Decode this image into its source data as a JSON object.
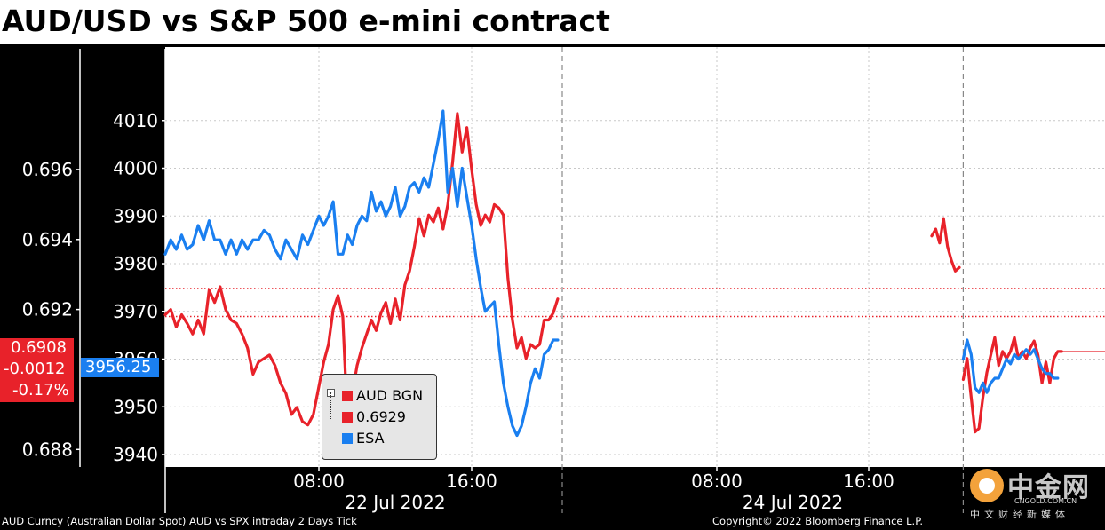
{
  "title": "AUD/USD vs S&P 500 e-mini contract",
  "footer": {
    "left": "AUD Curncy (Australian Dollar Spot) AUD vs SPX intraday 2 Days  Tick",
    "right": "Copyright© 2022 Bloomberg Finance L.P."
  },
  "watermark": {
    "name": "中金网",
    "url": "CNGOLD.COM.CN",
    "sub": "中文财经新媒体"
  },
  "colors": {
    "aud": "#e8222a",
    "esa": "#1a7ff0",
    "background": "#ffffff",
    "axis_bg": "#000000"
  },
  "last_value_tags": {
    "aud_price": "0.6908",
    "aud_change": "-0.0012",
    "aud_pct": "-0.17%",
    "esa_price": "3956.25"
  },
  "chart_data": {
    "type": "line",
    "title": "AUD/USD vs S&P 500 e-mini contract",
    "x_axis": {
      "ticks": [
        {
          "label": "08:00",
          "date": "22 Jul 2022"
        },
        {
          "label": "16:00",
          "date": "22 Jul 2022"
        },
        {
          "label": "08:00",
          "date": "24 Jul 2022"
        },
        {
          "label": "16:00",
          "date": "24 Jul 2022"
        }
      ],
      "date_labels": [
        "22 Jul 2022",
        "24 Jul 2022"
      ],
      "range": [
        "22 Jul 2022 01:00",
        "25 Jul 2022 07:00"
      ]
    },
    "left_axis": {
      "name": "AUD",
      "ticks": [
        "0.696",
        "0.694",
        "0.692",
        "0.688"
      ],
      "range": [
        0.6875,
        0.6995
      ]
    },
    "right_axis": {
      "name": "ESA",
      "ticks": [
        4010,
        4000,
        3990,
        3980,
        3970,
        3960,
        3950,
        3940
      ],
      "range": [
        3937.4,
        4025.4
      ]
    },
    "legend": {
      "entries": [
        "AUD BGN",
        "0.6929",
        "ESA"
      ],
      "placement": "bottom-left"
    },
    "series": [
      {
        "name": "AUD BGN",
        "axis": "left",
        "segments": [
          [
            [
              "22 Jul 01:00",
              0.69185
            ],
            [
              "22 Jul 01:15",
              0.692
            ],
            [
              "22 Jul 01:30",
              0.6915
            ],
            [
              "22 Jul 01:45",
              0.69185
            ],
            [
              "22 Jul 02:00",
              0.6916
            ],
            [
              "22 Jul 02:15",
              0.6913
            ],
            [
              "22 Jul 02:30",
              0.6917
            ],
            [
              "22 Jul 02:45",
              0.6913
            ],
            [
              "22 Jul 03:00",
              0.69255
            ],
            [
              "22 Jul 03:15",
              0.6922
            ],
            [
              "22 Jul 03:30",
              0.69265
            ],
            [
              "22 Jul 03:45",
              0.692
            ],
            [
              "22 Jul 04:00",
              0.6917
            ],
            [
              "22 Jul 04:15",
              0.6916
            ],
            [
              "22 Jul 04:30",
              0.6913
            ],
            [
              "22 Jul 04:45",
              0.6909
            ],
            [
              "22 Jul 05:00",
              0.69015
            ],
            [
              "22 Jul 05:15",
              0.6905
            ],
            [
              "22 Jul 05:30",
              0.6906
            ],
            [
              "22 Jul 05:45",
              0.6907
            ],
            [
              "22 Jul 06:00",
              0.6904
            ],
            [
              "22 Jul 06:15",
              0.6899
            ],
            [
              "22 Jul 06:30",
              0.6896
            ],
            [
              "22 Jul 06:45",
              0.689
            ],
            [
              "22 Jul 07:00",
              0.6892
            ],
            [
              "22 Jul 07:15",
              0.6888
            ],
            [
              "22 Jul 07:30",
              0.6887
            ],
            [
              "22 Jul 07:45",
              0.689
            ],
            [
              "22 Jul 08:00",
              0.6898
            ],
            [
              "22 Jul 08:15",
              0.6905
            ],
            [
              "22 Jul 08:30",
              0.691
            ],
            [
              "22 Jul 08:45",
              0.692
            ],
            [
              "22 Jul 09:00",
              0.6924
            ],
            [
              "22 Jul 09:15",
              0.6918
            ],
            [
              "22 Jul 09:30",
              0.6887
            ],
            [
              "22 Jul 09:45",
              0.6896
            ],
            [
              "22 Jul 10:00",
              0.6904
            ],
            [
              "22 Jul 10:15",
              0.6909
            ],
            [
              "22 Jul 10:30",
              0.6913
            ],
            [
              "22 Jul 10:45",
              0.6917
            ],
            [
              "22 Jul 11:00",
              0.6914
            ],
            [
              "22 Jul 11:15",
              0.6919
            ],
            [
              "22 Jul 11:30",
              0.6922
            ],
            [
              "22 Jul 11:45",
              0.6916
            ],
            [
              "22 Jul 12:00",
              0.6923
            ],
            [
              "22 Jul 12:15",
              0.6917
            ],
            [
              "22 Jul 12:30",
              0.6927
            ],
            [
              "22 Jul 12:45",
              0.6931
            ],
            [
              "22 Jul 13:00",
              0.6938
            ],
            [
              "22 Jul 13:15",
              0.6946
            ],
            [
              "22 Jul 13:30",
              0.6941
            ],
            [
              "22 Jul 13:45",
              0.6947
            ],
            [
              "22 Jul 14:00",
              0.6945
            ],
            [
              "22 Jul 14:15",
              0.6949
            ],
            [
              "22 Jul 14:30",
              0.6943
            ],
            [
              "22 Jul 14:45",
              0.695
            ],
            [
              "22 Jul 15:00",
              0.6962
            ],
            [
              "22 Jul 15:15",
              0.6976
            ],
            [
              "22 Jul 15:30",
              0.6965
            ],
            [
              "22 Jul 15:45",
              0.6972
            ],
            [
              "22 Jul 16:00",
              0.696
            ],
            [
              "22 Jul 16:15",
              0.695
            ],
            [
              "22 Jul 16:30",
              0.6944
            ],
            [
              "22 Jul 16:45",
              0.6947
            ],
            [
              "22 Jul 17:00",
              0.6945
            ],
            [
              "22 Jul 17:15",
              0.695
            ],
            [
              "22 Jul 17:30",
              0.6949
            ],
            [
              "22 Jul 17:45",
              0.6947
            ],
            [
              "22 Jul 18:00",
              0.6929
            ],
            [
              "22 Jul 18:15",
              0.6917
            ],
            [
              "22 Jul 18:30",
              0.6909
            ],
            [
              "22 Jul 18:45",
              0.6912
            ],
            [
              "22 Jul 19:00",
              0.6906
            ],
            [
              "22 Jul 19:15",
              0.691
            ],
            [
              "22 Jul 19:30",
              0.6909
            ],
            [
              "22 Jul 19:45",
              0.691
            ],
            [
              "22 Jul 20:00",
              0.6917
            ],
            [
              "22 Jul 20:15",
              0.6917
            ],
            [
              "22 Jul 20:30",
              0.6919
            ],
            [
              "22 Jul 20:45",
              0.6923
            ]
          ],
          [
            [
              "24 Jul 20:00",
              0.6941
            ],
            [
              "24 Jul 20:15",
              0.6943
            ],
            [
              "24 Jul 20:30",
              0.6939
            ],
            [
              "24 Jul 20:45",
              0.6946
            ],
            [
              "24 Jul 21:00",
              0.6938
            ],
            [
              "24 Jul 21:15",
              0.6934
            ],
            [
              "24 Jul 21:30",
              0.6931
            ],
            [
              "24 Jul 21:45",
              0.6932
            ]
          ],
          [
            [
              "24 Jul 22:00",
              0.69
            ],
            [
              "24 Jul 22:15",
              0.6906
            ],
            [
              "24 Jul 22:30",
              0.6895
            ],
            [
              "24 Jul 22:45",
              0.6885
            ],
            [
              "24 Jul 23:00",
              0.6886
            ],
            [
              "24 Jul 23:15",
              0.6895
            ],
            [
              "24 Jul 23:30",
              0.6902
            ],
            [
              "24 Jul 23:45",
              0.6907
            ],
            [
              "25 Jul 00:00",
              0.6912
            ],
            [
              "25 Jul 00:15",
              0.6904
            ],
            [
              "25 Jul 00:30",
              0.6908
            ],
            [
              "25 Jul 00:45",
              0.6906
            ],
            [
              "25 Jul 01:00",
              0.6908
            ],
            [
              "25 Jul 01:15",
              0.6912
            ],
            [
              "25 Jul 01:30",
              0.6906
            ],
            [
              "25 Jul 01:45",
              0.6908
            ],
            [
              "25 Jul 02:00",
              0.6906
            ],
            [
              "25 Jul 02:15",
              0.6909
            ],
            [
              "25 Jul 02:30",
              0.6911
            ],
            [
              "25 Jul 02:45",
              0.6907
            ],
            [
              "25 Jul 03:00",
              0.6899
            ],
            [
              "25 Jul 03:15",
              0.6905
            ],
            [
              "25 Jul 03:30",
              0.6899
            ],
            [
              "25 Jul 03:45",
              0.6906
            ],
            [
              "25 Jul 04:00",
              0.6908
            ],
            [
              "25 Jul 04:15",
              0.6908
            ]
          ]
        ],
        "last_value": 0.6908
      },
      {
        "name": "ESA",
        "axis": "right",
        "segments": [
          [
            [
              "22 Jul 01:00",
              3982
            ],
            [
              "22 Jul 01:15",
              3985
            ],
            [
              "22 Jul 01:30",
              3983
            ],
            [
              "22 Jul 01:45",
              3986
            ],
            [
              "22 Jul 02:00",
              3983
            ],
            [
              "22 Jul 02:15",
              3984
            ],
            [
              "22 Jul 02:30",
              3988
            ],
            [
              "22 Jul 02:45",
              3985
            ],
            [
              "22 Jul 03:00",
              3989
            ],
            [
              "22 Jul 03:15",
              3985
            ],
            [
              "22 Jul 03:30",
              3985
            ],
            [
              "22 Jul 03:45",
              3982
            ],
            [
              "22 Jul 04:00",
              3985
            ],
            [
              "22 Jul 04:15",
              3982
            ],
            [
              "22 Jul 04:30",
              3985
            ],
            [
              "22 Jul 04:45",
              3983
            ],
            [
              "22 Jul 05:00",
              3985
            ],
            [
              "22 Jul 05:15",
              3985
            ],
            [
              "22 Jul 05:30",
              3987
            ],
            [
              "22 Jul 05:45",
              3986
            ],
            [
              "22 Jul 06:00",
              3983
            ],
            [
              "22 Jul 06:15",
              3981
            ],
            [
              "22 Jul 06:30",
              3985
            ],
            [
              "22 Jul 06:45",
              3983
            ],
            [
              "22 Jul 07:00",
              3981
            ],
            [
              "22 Jul 07:15",
              3986
            ],
            [
              "22 Jul 07:30",
              3984
            ],
            [
              "22 Jul 07:45",
              3987
            ],
            [
              "22 Jul 08:00",
              3990
            ],
            [
              "22 Jul 08:15",
              3988
            ],
            [
              "22 Jul 08:30",
              3990
            ],
            [
              "22 Jul 08:45",
              3993
            ],
            [
              "22 Jul 09:00",
              3982
            ],
            [
              "22 Jul 09:15",
              3982
            ],
            [
              "22 Jul 09:30",
              3986
            ],
            [
              "22 Jul 09:45",
              3984
            ],
            [
              "22 Jul 10:00",
              3988
            ],
            [
              "22 Jul 10:15",
              3990
            ],
            [
              "22 Jul 10:30",
              3989
            ],
            [
              "22 Jul 10:45",
              3995
            ],
            [
              "22 Jul 11:00",
              3991
            ],
            [
              "22 Jul 11:15",
              3993
            ],
            [
              "22 Jul 11:30",
              3990
            ],
            [
              "22 Jul 11:45",
              3992
            ],
            [
              "22 Jul 12:00",
              3996
            ],
            [
              "22 Jul 12:15",
              3990
            ],
            [
              "22 Jul 12:30",
              3992
            ],
            [
              "22 Jul 12:45",
              3996
            ],
            [
              "22 Jul 13:00",
              3997
            ],
            [
              "22 Jul 13:15",
              3995
            ],
            [
              "22 Jul 13:30",
              3998
            ],
            [
              "22 Jul 13:45",
              3996
            ],
            [
              "22 Jul 14:00",
              4001
            ],
            [
              "22 Jul 14:15",
              4006
            ],
            [
              "22 Jul 14:30",
              4012
            ],
            [
              "22 Jul 14:45",
              3995
            ],
            [
              "22 Jul 15:00",
              4000
            ],
            [
              "22 Jul 15:15",
              3992
            ],
            [
              "22 Jul 15:30",
              4000
            ],
            [
              "22 Jul 15:45",
              3994
            ],
            [
              "22 Jul 16:00",
              3988
            ],
            [
              "22 Jul 16:15",
              3981
            ],
            [
              "22 Jul 16:30",
              3975
            ],
            [
              "22 Jul 16:45",
              3970
            ],
            [
              "22 Jul 17:00",
              3971
            ],
            [
              "22 Jul 17:15",
              3972
            ],
            [
              "22 Jul 17:30",
              3963
            ],
            [
              "22 Jul 17:45",
              3955
            ],
            [
              "22 Jul 18:00",
              3950
            ],
            [
              "22 Jul 18:15",
              3946
            ],
            [
              "22 Jul 18:30",
              3944
            ],
            [
              "22 Jul 18:45",
              3946
            ],
            [
              "22 Jul 19:00",
              3950
            ],
            [
              "22 Jul 19:15",
              3955
            ],
            [
              "22 Jul 19:30",
              3958
            ],
            [
              "22 Jul 19:45",
              3956
            ],
            [
              "22 Jul 20:00",
              3961
            ],
            [
              "22 Jul 20:15",
              3962
            ],
            [
              "22 Jul 20:30",
              3964
            ],
            [
              "22 Jul 20:45",
              3964
            ]
          ],
          [
            [
              "24 Jul 22:00",
              3960
            ],
            [
              "24 Jul 22:15",
              3964
            ],
            [
              "24 Jul 22:30",
              3961
            ],
            [
              "24 Jul 22:45",
              3954
            ],
            [
              "24 Jul 23:00",
              3953
            ],
            [
              "24 Jul 23:15",
              3955
            ],
            [
              "24 Jul 23:30",
              3953
            ],
            [
              "24 Jul 23:45",
              3955
            ],
            [
              "25 Jul 00:00",
              3956
            ],
            [
              "25 Jul 00:15",
              3956
            ],
            [
              "25 Jul 00:30",
              3958
            ],
            [
              "25 Jul 00:45",
              3960
            ],
            [
              "25 Jul 01:00",
              3959
            ],
            [
              "25 Jul 01:15",
              3961
            ],
            [
              "25 Jul 01:30",
              3960
            ],
            [
              "25 Jul 01:45",
              3961
            ],
            [
              "25 Jul 02:00",
              3962
            ],
            [
              "25 Jul 02:15",
              3961
            ],
            [
              "25 Jul 02:30",
              3962
            ],
            [
              "25 Jul 02:45",
              3960
            ],
            [
              "25 Jul 03:00",
              3958
            ],
            [
              "25 Jul 03:15",
              3957
            ],
            [
              "25 Jul 03:30",
              3957
            ],
            [
              "25 Jul 03:45",
              3956
            ],
            [
              "25 Jul 04:00",
              3956
            ]
          ]
        ],
        "last_value": 3956.25
      }
    ],
    "reference_lines": [
      {
        "axis": "left",
        "value": 0.6918,
        "style": "dotted"
      },
      {
        "axis": "left",
        "value": 0.6926,
        "style": "dotted"
      }
    ],
    "session_breaks": [
      "22 Jul 21:00",
      "24 Jul 22:00"
    ],
    "grid": true
  }
}
